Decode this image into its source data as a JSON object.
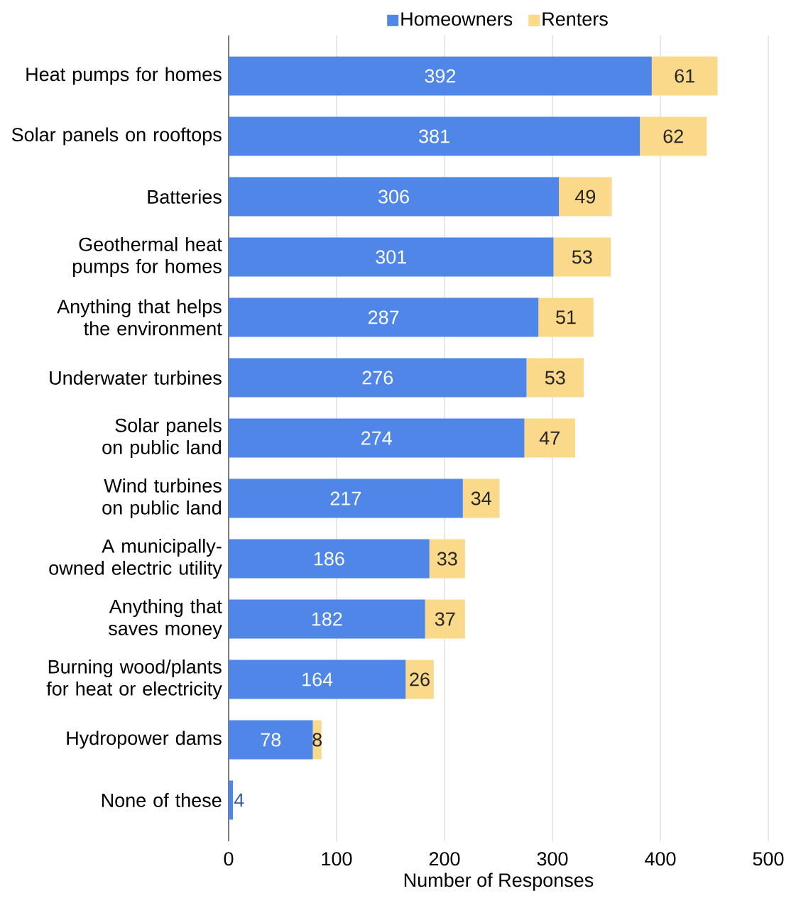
{
  "chart_data": {
    "type": "bar",
    "orientation": "horizontal",
    "stacked": true,
    "xlabel": "Number of Responses",
    "categories": [
      "Heat pumps for homes",
      "Solar panels on rooftops",
      "Batteries",
      "Geothermal heat pumps for homes",
      "Anything that helps the environment",
      "Underwater turbines",
      "Solar panels on public land",
      "Wind turbines on public land",
      "A municipally-owned electric utility",
      "Anything that saves money",
      "Burning wood/plants for heat or electricity",
      "Hydropower dams",
      "None of these"
    ],
    "series": [
      {
        "name": "Homeowners",
        "color": "#4f86e8",
        "values": [
          392,
          381,
          306,
          301,
          287,
          276,
          274,
          217,
          186,
          182,
          164,
          78,
          4
        ]
      },
      {
        "name": "Renters",
        "color": "#fbd98a",
        "values": [
          61,
          62,
          49,
          53,
          51,
          53,
          47,
          34,
          33,
          37,
          26,
          8,
          null
        ]
      }
    ],
    "xlim": [
      0,
      500
    ],
    "xticks": [
      0,
      100,
      200,
      300,
      400,
      500
    ],
    "grid": "x",
    "legend": "top",
    "data_labels": true
  }
}
